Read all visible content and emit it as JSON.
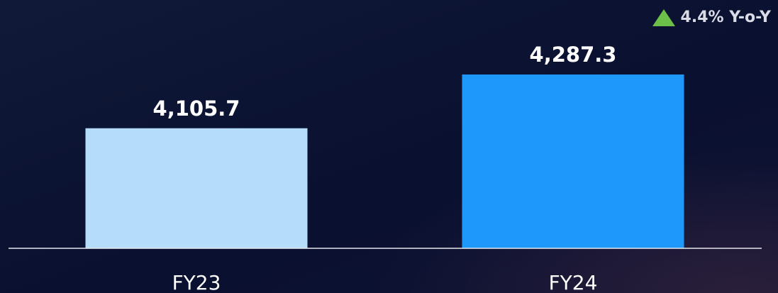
{
  "badge": {
    "text": "4.4% Y-o-Y",
    "arrow_icon": "triangle-up-icon",
    "arrow_color": "#6cc04a"
  },
  "chart_data": {
    "type": "bar",
    "categories": [
      "FY23",
      "FY24"
    ],
    "values": [
      4105.7,
      4287.3
    ],
    "value_labels": [
      "4,105.7",
      "4,287.3"
    ],
    "colors": [
      "#b6dcfb",
      "#1e98fb"
    ],
    "title": "",
    "xlabel": "",
    "ylabel": "",
    "ylim": [
      3700,
      4400
    ],
    "grid": false
  }
}
